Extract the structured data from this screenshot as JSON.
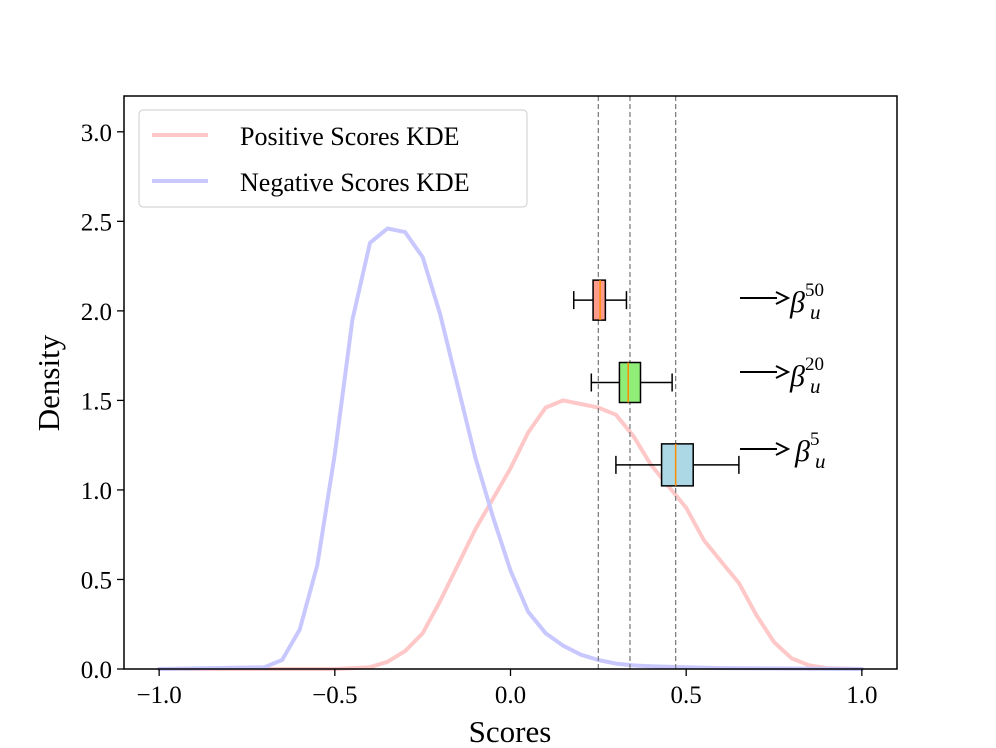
{
  "chart_data": {
    "type": "line",
    "title": "",
    "xlabel": "Scores",
    "ylabel": "Density",
    "xlim": [
      -1.1,
      1.1
    ],
    "ylim": [
      0,
      3.2
    ],
    "x_ticks": [
      -1.0,
      -0.5,
      0.0,
      0.5,
      1.0
    ],
    "x_tick_labels": [
      "−1.0",
      "−0.5",
      "0.0",
      "0.5",
      "1.0"
    ],
    "y_ticks": [
      0.0,
      0.5,
      1.0,
      1.5,
      2.0,
      2.5,
      3.0
    ],
    "y_tick_labels": [
      "0.0",
      "0.5",
      "1.0",
      "1.5",
      "2.0",
      "2.5",
      "3.0"
    ],
    "grid": false,
    "legend_position": "top-left",
    "series": [
      {
        "name": "Positive Scores KDE",
        "color": "#ffc8c8",
        "points": [
          [
            -1.0,
            0
          ],
          [
            -0.5,
            0
          ],
          [
            -0.4,
            0.01
          ],
          [
            -0.35,
            0.04
          ],
          [
            -0.3,
            0.1
          ],
          [
            -0.25,
            0.2
          ],
          [
            -0.2,
            0.38
          ],
          [
            -0.15,
            0.58
          ],
          [
            -0.1,
            0.78
          ],
          [
            -0.05,
            0.95
          ],
          [
            0.0,
            1.12
          ],
          [
            0.05,
            1.32
          ],
          [
            0.1,
            1.46
          ],
          [
            0.15,
            1.5
          ],
          [
            0.2,
            1.48
          ],
          [
            0.25,
            1.46
          ],
          [
            0.3,
            1.42
          ],
          [
            0.35,
            1.3
          ],
          [
            0.4,
            1.14
          ],
          [
            0.45,
            1.02
          ],
          [
            0.5,
            0.9
          ],
          [
            0.55,
            0.72
          ],
          [
            0.6,
            0.6
          ],
          [
            0.65,
            0.48
          ],
          [
            0.7,
            0.3
          ],
          [
            0.75,
            0.15
          ],
          [
            0.8,
            0.06
          ],
          [
            0.85,
            0.02
          ],
          [
            0.9,
            0.005
          ],
          [
            1.0,
            0
          ]
        ]
      },
      {
        "name": "Negative Scores KDE",
        "color": "#c8c8ff",
        "points": [
          [
            -1.0,
            0
          ],
          [
            -0.7,
            0.01
          ],
          [
            -0.65,
            0.05
          ],
          [
            -0.6,
            0.22
          ],
          [
            -0.55,
            0.58
          ],
          [
            -0.5,
            1.2
          ],
          [
            -0.45,
            1.95
          ],
          [
            -0.4,
            2.38
          ],
          [
            -0.35,
            2.46
          ],
          [
            -0.3,
            2.44
          ],
          [
            -0.25,
            2.3
          ],
          [
            -0.2,
            1.98
          ],
          [
            -0.15,
            1.58
          ],
          [
            -0.1,
            1.18
          ],
          [
            -0.05,
            0.85
          ],
          [
            0.0,
            0.55
          ],
          [
            0.05,
            0.32
          ],
          [
            0.1,
            0.2
          ],
          [
            0.15,
            0.13
          ],
          [
            0.2,
            0.08
          ],
          [
            0.25,
            0.05
          ],
          [
            0.3,
            0.03
          ],
          [
            0.35,
            0.02
          ],
          [
            0.4,
            0.015
          ],
          [
            0.5,
            0.01
          ],
          [
            0.6,
            0.005
          ],
          [
            1.0,
            0
          ]
        ]
      }
    ],
    "vlines": [
      0.25,
      0.34,
      0.47
    ],
    "boxplots": [
      {
        "label_base": "β",
        "label_sub": "u",
        "label_sup": "50",
        "y": 2.06,
        "whisker_low": 0.18,
        "q1": 0.235,
        "median": 0.255,
        "q3": 0.27,
        "whisker_high": 0.33,
        "color": "#ff9b8b"
      },
      {
        "label_base": "β",
        "label_sub": "u",
        "label_sup": "20",
        "y": 1.6,
        "whisker_low": 0.23,
        "q1": 0.31,
        "median": 0.335,
        "q3": 0.37,
        "whisker_high": 0.46,
        "color": "#90ee78"
      },
      {
        "label_base": "β",
        "label_sub": "u",
        "label_sup": "5",
        "y": 1.14,
        "whisker_low": 0.3,
        "q1": 0.43,
        "median": 0.47,
        "q3": 0.52,
        "whisker_high": 0.65,
        "color": "#acd8e6"
      }
    ]
  }
}
